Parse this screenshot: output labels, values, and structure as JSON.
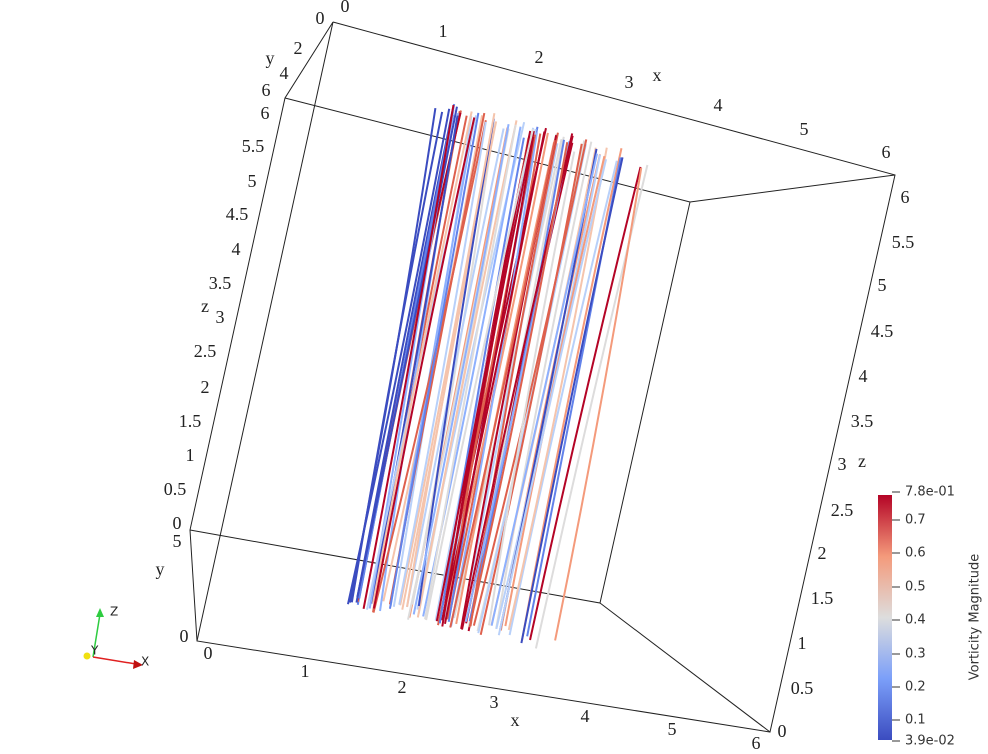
{
  "axes_grid": {
    "top_x": {
      "label": "x",
      "ticks": [
        0,
        1,
        2,
        3,
        4,
        5,
        6
      ]
    },
    "top_y": {
      "label": "y",
      "ticks": [
        0,
        2,
        4,
        6
      ]
    },
    "left_z": {
      "label": "z",
      "ticks": [
        6,
        5.5,
        5,
        4.5,
        4,
        3.5,
        3,
        2.5,
        2,
        1.5,
        1,
        0.5,
        0
      ]
    },
    "left_y": {
      "label": "y",
      "ticks": [
        5,
        0
      ]
    },
    "bottom_x": {
      "label": "x",
      "ticks": [
        0,
        1,
        2,
        3,
        4,
        5,
        6
      ]
    },
    "right_z": {
      "label": "z",
      "ticks": [
        6,
        5.5,
        5,
        4.5,
        4,
        3.5,
        3,
        2.5,
        2,
        1.5,
        1,
        0.5,
        0
      ]
    }
  },
  "color_legend": {
    "title": "Vorticity Magnitude",
    "labels": [
      "7.8e-01",
      0.7,
      0.6,
      0.5,
      0.4,
      0.3,
      0.2,
      0.1,
      "3.9e-02"
    ]
  },
  "orientation_axes": {
    "x": "X",
    "y": "Y",
    "z": "Z"
  }
}
